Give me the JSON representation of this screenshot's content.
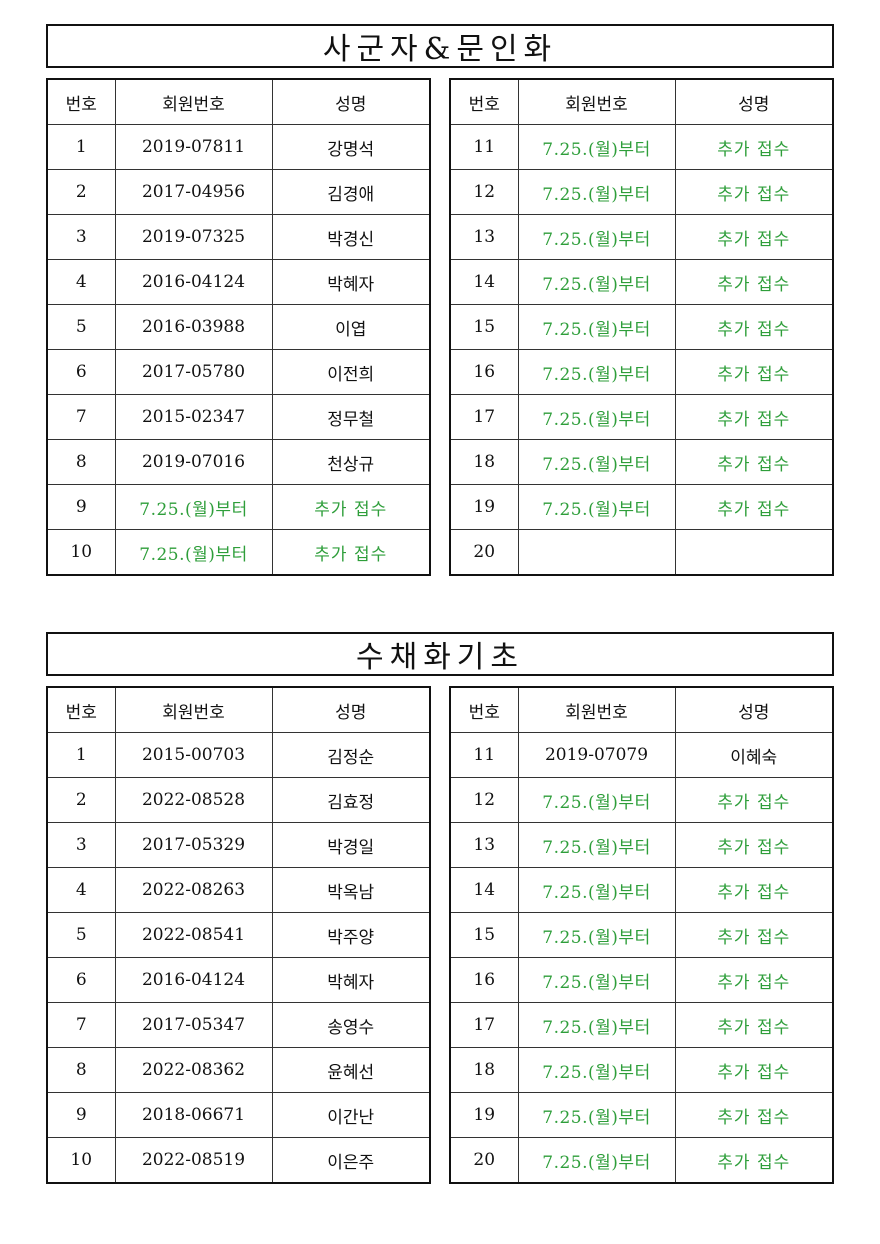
{
  "pending_color": "#2e9e3a",
  "sections": [
    {
      "title": "사군자&문인화",
      "headers": [
        "번호",
        "회원번호",
        "성명"
      ],
      "left_rows": [
        {
          "no": "1",
          "member_id": "2019-07811",
          "name": "강명석",
          "pending": false
        },
        {
          "no": "2",
          "member_id": "2017-04956",
          "name": "김경애",
          "pending": false
        },
        {
          "no": "3",
          "member_id": "2019-07325",
          "name": "박경신",
          "pending": false
        },
        {
          "no": "4",
          "member_id": "2016-04124",
          "name": "박혜자",
          "pending": false
        },
        {
          "no": "5",
          "member_id": "2016-03988",
          "name": "이엽",
          "pending": false
        },
        {
          "no": "6",
          "member_id": "2017-05780",
          "name": "이전희",
          "pending": false
        },
        {
          "no": "7",
          "member_id": "2015-02347",
          "name": "정무철",
          "pending": false
        },
        {
          "no": "8",
          "member_id": "2019-07016",
          "name": "천상규",
          "pending": false
        },
        {
          "no": "9",
          "member_id": "7.25.(월)부터",
          "name": "추가 접수",
          "pending": true
        },
        {
          "no": "10",
          "member_id": "7.25.(월)부터",
          "name": "추가 접수",
          "pending": true
        }
      ],
      "right_rows": [
        {
          "no": "11",
          "member_id": "7.25.(월)부터",
          "name": "추가 접수",
          "pending": true
        },
        {
          "no": "12",
          "member_id": "7.25.(월)부터",
          "name": "추가 접수",
          "pending": true
        },
        {
          "no": "13",
          "member_id": "7.25.(월)부터",
          "name": "추가 접수",
          "pending": true
        },
        {
          "no": "14",
          "member_id": "7.25.(월)부터",
          "name": "추가 접수",
          "pending": true
        },
        {
          "no": "15",
          "member_id": "7.25.(월)부터",
          "name": "추가 접수",
          "pending": true
        },
        {
          "no": "16",
          "member_id": "7.25.(월)부터",
          "name": "추가 접수",
          "pending": true
        },
        {
          "no": "17",
          "member_id": "7.25.(월)부터",
          "name": "추가 접수",
          "pending": true
        },
        {
          "no": "18",
          "member_id": "7.25.(월)부터",
          "name": "추가 접수",
          "pending": true
        },
        {
          "no": "19",
          "member_id": "7.25.(월)부터",
          "name": "추가 접수",
          "pending": true
        },
        {
          "no": "20",
          "member_id": "",
          "name": "",
          "pending": false
        }
      ]
    },
    {
      "title": "수채화기초",
      "headers": [
        "번호",
        "회원번호",
        "성명"
      ],
      "left_rows": [
        {
          "no": "1",
          "member_id": "2015-00703",
          "name": "김정순",
          "pending": false
        },
        {
          "no": "2",
          "member_id": "2022-08528",
          "name": "김효정",
          "pending": false
        },
        {
          "no": "3",
          "member_id": "2017-05329",
          "name": "박경일",
          "pending": false
        },
        {
          "no": "4",
          "member_id": "2022-08263",
          "name": "박옥남",
          "pending": false
        },
        {
          "no": "5",
          "member_id": "2022-08541",
          "name": "박주양",
          "pending": false
        },
        {
          "no": "6",
          "member_id": "2016-04124",
          "name": "박혜자",
          "pending": false
        },
        {
          "no": "7",
          "member_id": "2017-05347",
          "name": "송영수",
          "pending": false
        },
        {
          "no": "8",
          "member_id": "2022-08362",
          "name": "윤혜선",
          "pending": false
        },
        {
          "no": "9",
          "member_id": "2018-06671",
          "name": "이간난",
          "pending": false
        },
        {
          "no": "10",
          "member_id": "2022-08519",
          "name": "이은주",
          "pending": false
        }
      ],
      "right_rows": [
        {
          "no": "11",
          "member_id": "2019-07079",
          "name": "이혜숙",
          "pending": false
        },
        {
          "no": "12",
          "member_id": "7.25.(월)부터",
          "name": "추가 접수",
          "pending": true
        },
        {
          "no": "13",
          "member_id": "7.25.(월)부터",
          "name": "추가 접수",
          "pending": true
        },
        {
          "no": "14",
          "member_id": "7.25.(월)부터",
          "name": "추가 접수",
          "pending": true
        },
        {
          "no": "15",
          "member_id": "7.25.(월)부터",
          "name": "추가 접수",
          "pending": true
        },
        {
          "no": "16",
          "member_id": "7.25.(월)부터",
          "name": "추가 접수",
          "pending": true
        },
        {
          "no": "17",
          "member_id": "7.25.(월)부터",
          "name": "추가 접수",
          "pending": true
        },
        {
          "no": "18",
          "member_id": "7.25.(월)부터",
          "name": "추가 접수",
          "pending": true
        },
        {
          "no": "19",
          "member_id": "7.25.(월)부터",
          "name": "추가 접수",
          "pending": true
        },
        {
          "no": "20",
          "member_id": "7.25.(월)부터",
          "name": "추가 접수",
          "pending": true
        }
      ]
    }
  ]
}
